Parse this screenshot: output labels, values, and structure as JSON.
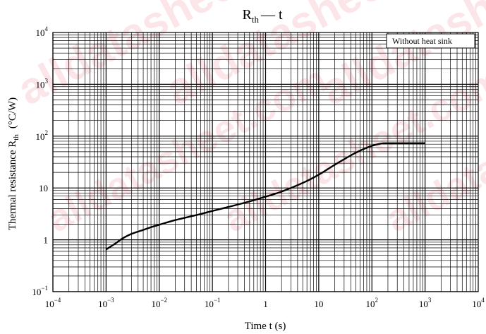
{
  "chart_data": {
    "type": "line",
    "title": "R",
    "title_subscript": "th",
    "title_suffix": "— t",
    "xlabel": "Time  t  (s)",
    "ylabel": "Thermal resistance  R",
    "ylabel_subscript": "th",
    "ylabel_unit": "(°C/W)",
    "x_scale": "log",
    "y_scale": "log",
    "xlim": [
      0.0001,
      10000
    ],
    "ylim": [
      0.1,
      10000
    ],
    "grid": true,
    "legend_text": "Without heat sink",
    "legend_position": "top-right",
    "x_ticks": [
      {
        "base": "10",
        "exp": "−4"
      },
      {
        "base": "10",
        "exp": "−3"
      },
      {
        "base": "10",
        "exp": "−2"
      },
      {
        "base": "10",
        "exp": "−1"
      },
      {
        "base": "1",
        "exp": ""
      },
      {
        "base": "10",
        "exp": ""
      },
      {
        "base": "10",
        "exp": "2"
      },
      {
        "base": "10",
        "exp": "3"
      },
      {
        "base": "10",
        "exp": "4"
      }
    ],
    "y_ticks": [
      {
        "base": "10",
        "exp": "−1"
      },
      {
        "base": "1",
        "exp": ""
      },
      {
        "base": "10",
        "exp": ""
      },
      {
        "base": "10",
        "exp": "2"
      },
      {
        "base": "10",
        "exp": "3"
      },
      {
        "base": "10",
        "exp": "4"
      }
    ],
    "series": [
      {
        "x": [
          0.001,
          0.0015,
          0.002,
          0.003,
          0.005,
          0.007,
          0.01,
          0.02,
          0.05,
          0.1,
          0.2,
          0.5,
          1,
          2,
          5,
          10,
          20,
          50,
          100,
          150,
          200,
          300,
          500,
          1000
        ],
        "y": [
          0.65,
          0.85,
          1.05,
          1.3,
          1.55,
          1.75,
          1.95,
          2.4,
          3.0,
          3.6,
          4.3,
          5.5,
          6.8,
          8.5,
          12.5,
          18,
          28,
          48,
          65,
          72,
          73,
          73,
          73,
          73
        ]
      }
    ],
    "line_color": "#000000"
  },
  "watermark": {
    "color": "#e0001a",
    "texts": [
      "alldatasheet",
      "alldatasheet.com"
    ]
  }
}
